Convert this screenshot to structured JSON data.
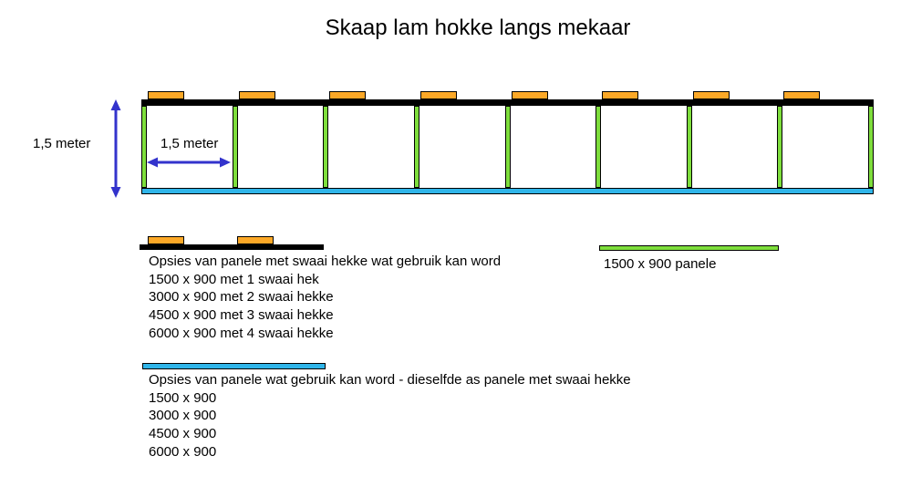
{
  "title": "Skaap lam hokke langs mekaar",
  "colors": {
    "gate_orange": "#FCA827",
    "panel_green": "#7EDE3C",
    "feed_cyan": "#30B5E9",
    "arrow_blue": "#3333CC"
  },
  "diagram": {
    "pen_count": 8,
    "height_label": "1,5 meter",
    "width_label": "1,5 meter"
  },
  "legend_swing": {
    "heading": "Opsies van panele met swaai hekke wat gebruik kan word",
    "options": [
      "1500 x 900 met 1 swaai hek",
      "3000 x 900 met 2 swaai hekke",
      "4500 x 900 met 3 swaai hekke",
      "6000 x 900 met 4 swaai hekke"
    ]
  },
  "legend_green": {
    "label": "1500 x 900 panele"
  },
  "legend_plain": {
    "heading": "Opsies van panele wat gebruik kan word - dieselfde as panele met swaai hekke",
    "options": [
      "1500 x 900",
      "3000 x 900",
      "4500 x 900",
      "6000 x 900"
    ]
  }
}
